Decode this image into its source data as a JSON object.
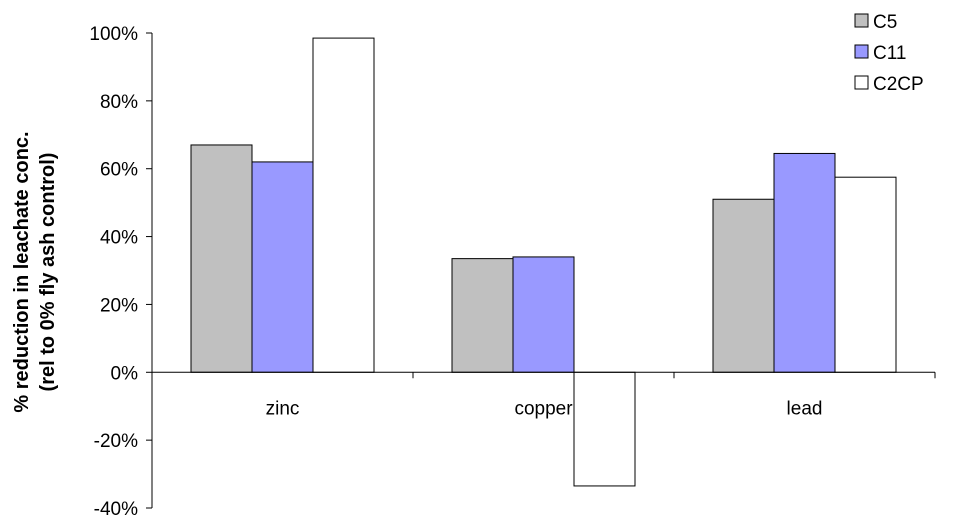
{
  "chart_data": {
    "type": "bar",
    "title": "",
    "xlabel": "",
    "ylabel_lines": [
      "% reduction in leachate conc.",
      "(rel to 0% fly ash control)"
    ],
    "categories": [
      "zinc",
      "copper",
      "lead"
    ],
    "ylim": [
      -0.4,
      1.0
    ],
    "ytick_values": [
      -0.4,
      -0.2,
      0,
      0.2,
      0.4,
      0.6,
      0.8,
      1.0
    ],
    "ytick_labels": [
      "-40%",
      "-20%",
      "0%",
      "20%",
      "40%",
      "60%",
      "80%",
      "100%"
    ],
    "series": [
      {
        "name": "C5",
        "values": [
          0.67,
          0.335,
          0.51
        ],
        "color": "#c0c0c0"
      },
      {
        "name": "C11",
        "values": [
          0.62,
          0.34,
          0.645
        ],
        "color": "#9999ff"
      },
      {
        "name": "C2CP",
        "values": [
          0.985,
          -0.335,
          0.575
        ],
        "color": "#ffffff"
      }
    ],
    "legend_position": "top-right",
    "grid": false
  }
}
